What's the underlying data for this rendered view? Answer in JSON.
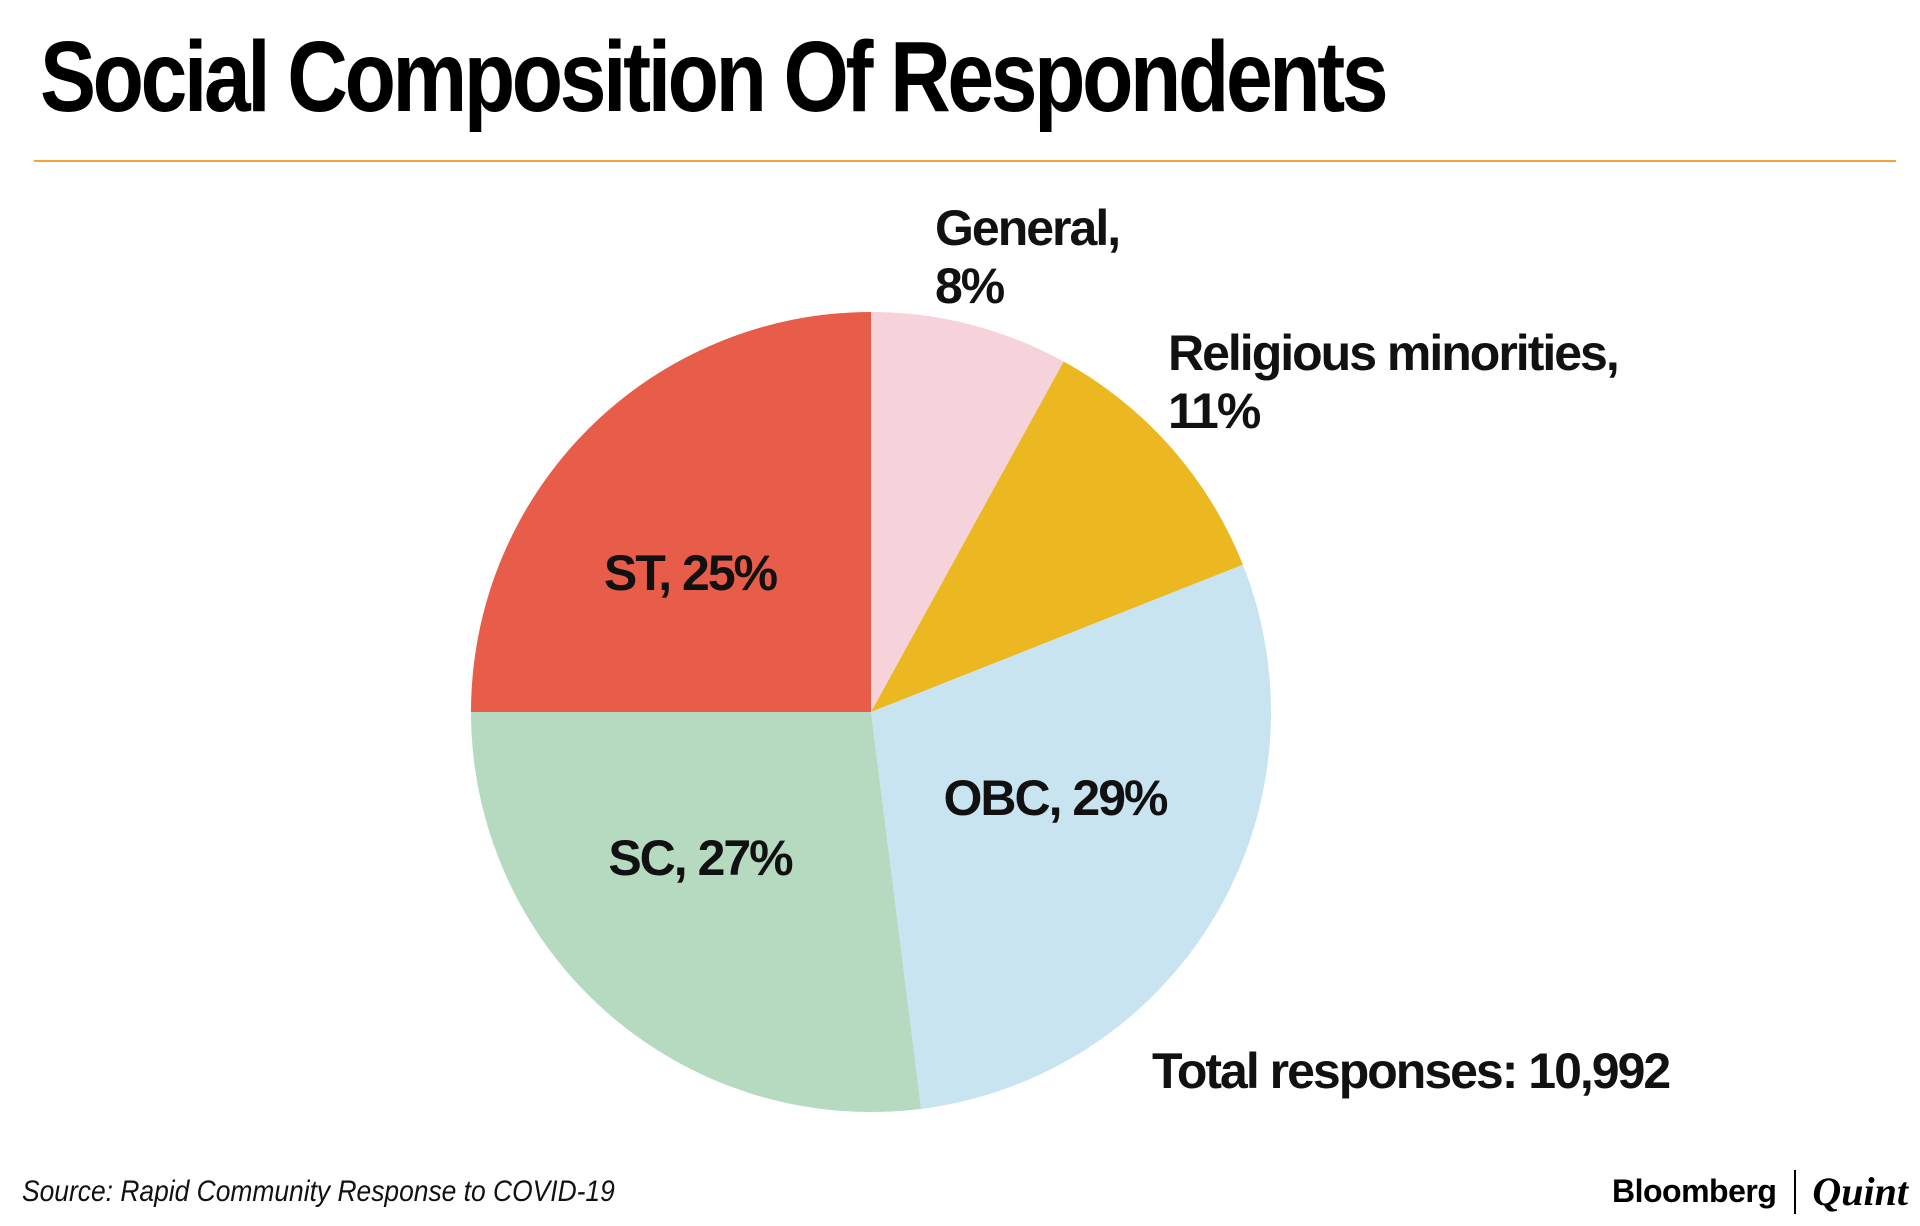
{
  "colors": {
    "rule": "#F2A33A"
  },
  "chart_data": {
    "type": "pie",
    "title": "Social Composition Of Respondents",
    "slices": [
      {
        "label": "General",
        "value": 8,
        "color": "#F6D3DA"
      },
      {
        "label": "Religious minorities",
        "value": 11,
        "color": "#EBB821"
      },
      {
        "label": "OBC",
        "value": 29,
        "color": "#C8E4F1"
      },
      {
        "label": "SC",
        "value": 27,
        "color": "#B5DAC0"
      },
      {
        "label": "ST",
        "value": 25,
        "color": "#E85C4A"
      }
    ],
    "data_labels": [
      {
        "line1": "General,",
        "line2": "8%"
      },
      {
        "line1": "Religious minorities,",
        "line2": "11%"
      },
      {
        "line1": "OBC, 29%"
      },
      {
        "line1": "SC, 27%"
      },
      {
        "line1": "ST, 25%"
      }
    ],
    "annotation": "Total responses: 10,992",
    "start_angle": "12 o'clock",
    "direction": "clockwise"
  },
  "footer": {
    "source": "Source: Rapid Community Response to COVID-19",
    "logo_left": "Bloomberg",
    "logo_right": "Quint"
  }
}
